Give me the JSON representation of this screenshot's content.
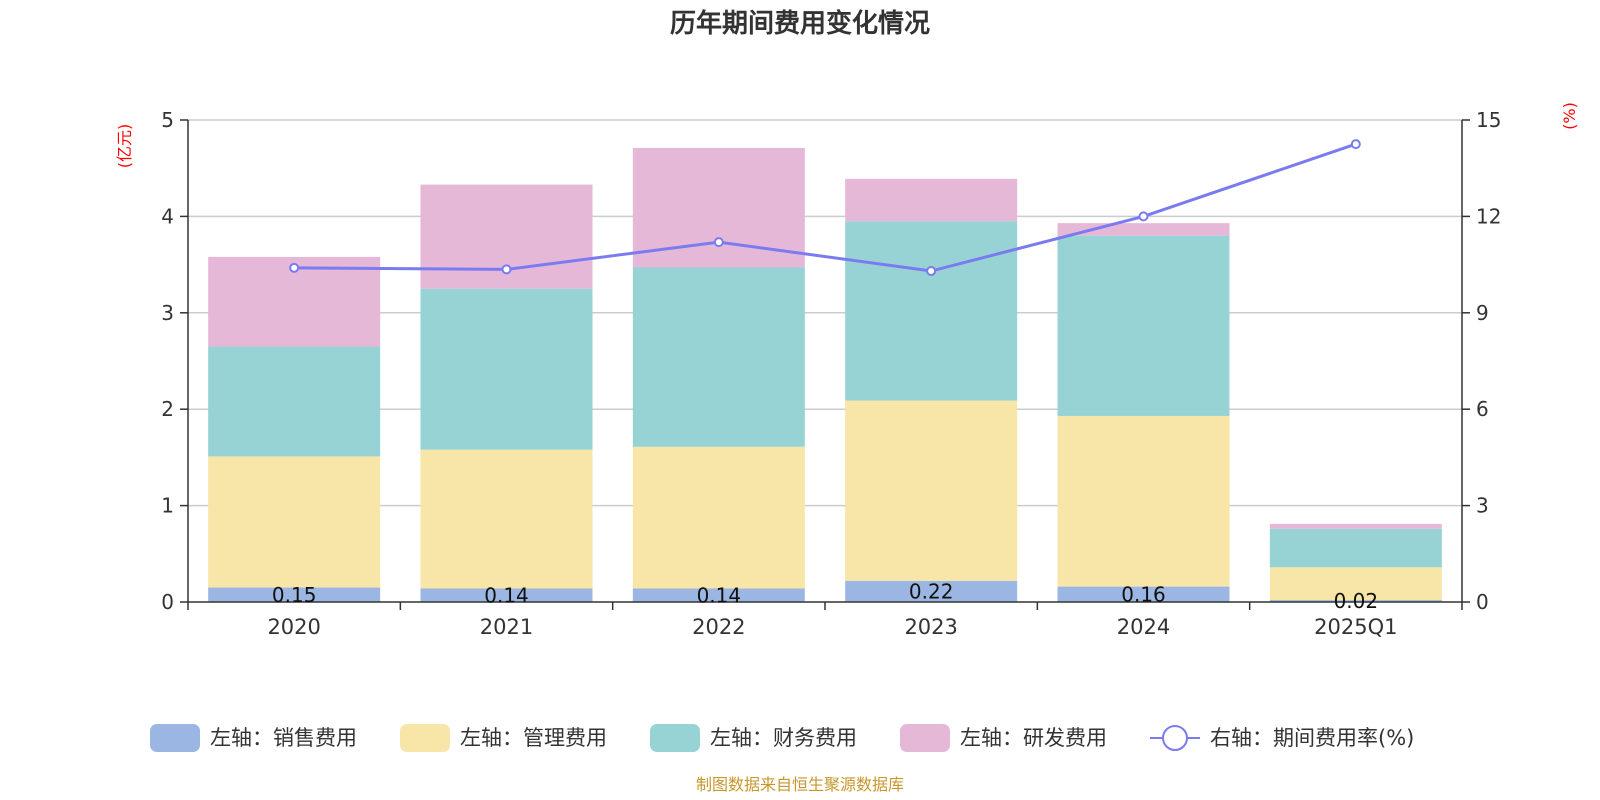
{
  "chart_data": {
    "type": "bar",
    "stacked": true,
    "title": "历年期间费用变化情况",
    "categories": [
      "2020",
      "2021",
      "2022",
      "2023",
      "2024",
      "2025Q1"
    ],
    "left_axis": {
      "unit": "(亿元)",
      "ylim": [
        0,
        5
      ],
      "ticks": [
        "0",
        "1",
        "2",
        "3",
        "4",
        "5"
      ]
    },
    "right_axis": {
      "unit": "(%)",
      "ylim": [
        0,
        15
      ],
      "ticks": [
        "0",
        "3",
        "6",
        "9",
        "12",
        "15"
      ]
    },
    "series": [
      {
        "name": "左轴：销售费用",
        "axis": "left",
        "color": "#9bb6e2",
        "values": [
          0.15,
          0.14,
          0.14,
          0.22,
          0.16,
          0.02
        ],
        "labels": [
          "0.15",
          "0.14",
          "0.14",
          "0.22",
          "0.16",
          "0.02"
        ]
      },
      {
        "name": "左轴：管理费用",
        "axis": "left",
        "color": "#f7e6a7",
        "values": [
          1.36,
          1.44,
          1.47,
          1.87,
          1.77,
          0.34
        ]
      },
      {
        "name": "左轴：财务费用",
        "axis": "left",
        "color": "#97d3d4",
        "values": [
          1.14,
          1.67,
          1.86,
          1.86,
          1.87,
          0.4
        ]
      },
      {
        "name": "左轴：研发费用",
        "axis": "left",
        "color": "#e6b8d8",
        "values": [
          0.93,
          1.08,
          1.24,
          0.44,
          0.13,
          0.05
        ]
      },
      {
        "name": "右轴：期间费用率(%)",
        "axis": "right",
        "type": "line",
        "color": "#7b7bf0",
        "values": [
          10.4,
          10.35,
          11.2,
          10.3,
          12.0,
          14.25
        ]
      }
    ],
    "legend_position": "bottom",
    "grid": true
  },
  "footer": {
    "source": "制图数据来自恒生聚源数据库"
  }
}
